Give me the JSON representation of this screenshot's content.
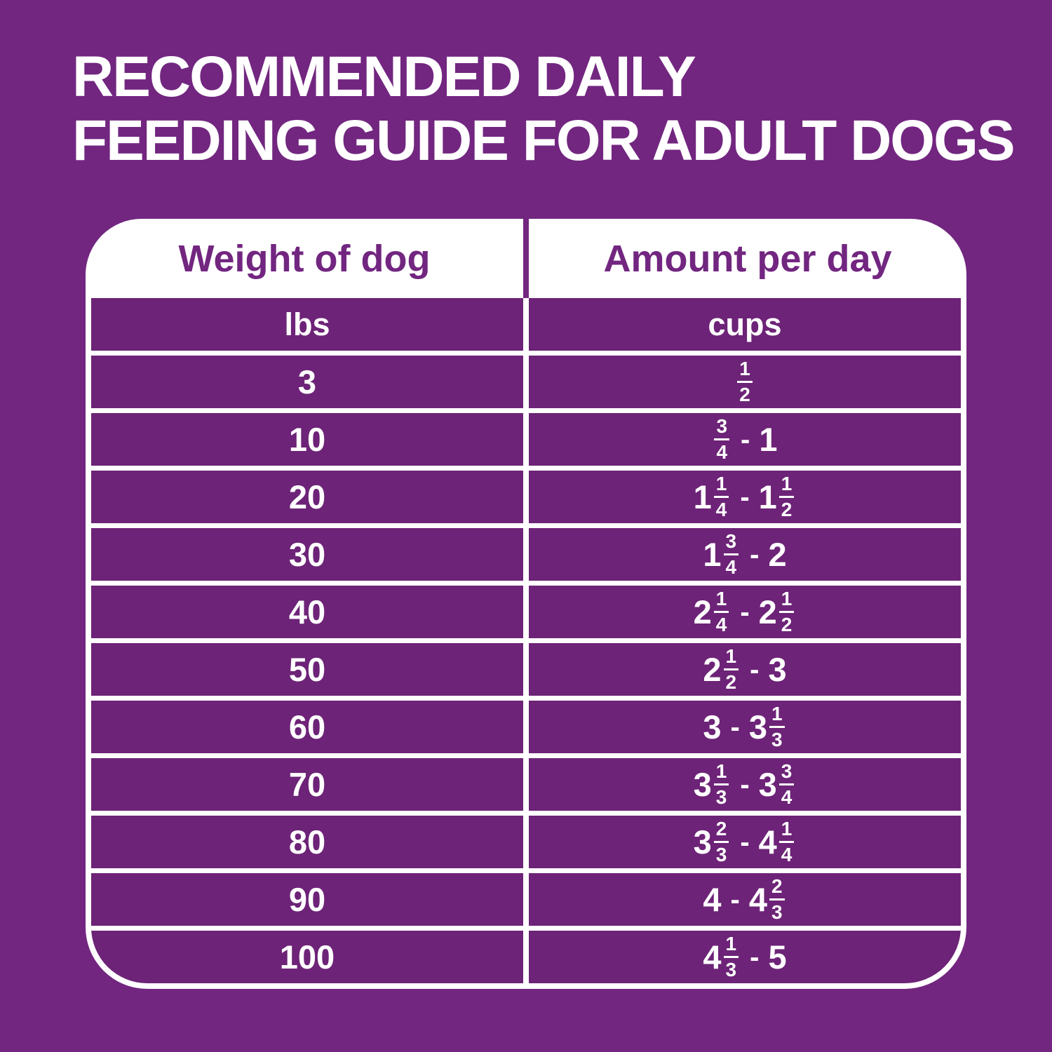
{
  "colors": {
    "background": "#722680",
    "row_fill": "#6D2377",
    "table_line": "#FFFFFF",
    "header_fill": "#FFFFFF",
    "header_text": "#722680",
    "body_text": "#FFFFFF"
  },
  "title": {
    "line1": "RECOMMENDED DAILY",
    "line2": "FEEDING GUIDE FOR ADULT DOGS"
  },
  "table": {
    "columns": [
      {
        "header": "Weight of dog",
        "unit": "lbs"
      },
      {
        "header": "Amount per day",
        "unit": "cups"
      }
    ],
    "range_separator": "-",
    "rows": [
      {
        "weight": "3",
        "amounts": [
          {
            "num": "1",
            "den": "2"
          }
        ]
      },
      {
        "weight": "10",
        "amounts": [
          {
            "num": "3",
            "den": "4"
          },
          {
            "whole": "1"
          }
        ]
      },
      {
        "weight": "20",
        "amounts": [
          {
            "whole": "1",
            "num": "1",
            "den": "4"
          },
          {
            "whole": "1",
            "num": "1",
            "den": "2"
          }
        ]
      },
      {
        "weight": "30",
        "amounts": [
          {
            "whole": "1",
            "num": "3",
            "den": "4"
          },
          {
            "whole": "2"
          }
        ]
      },
      {
        "weight": "40",
        "amounts": [
          {
            "whole": "2",
            "num": "1",
            "den": "4"
          },
          {
            "whole": "2",
            "num": "1",
            "den": "2"
          }
        ]
      },
      {
        "weight": "50",
        "amounts": [
          {
            "whole": "2",
            "num": "1",
            "den": "2"
          },
          {
            "whole": "3"
          }
        ]
      },
      {
        "weight": "60",
        "amounts": [
          {
            "whole": "3"
          },
          {
            "whole": "3",
            "num": "1",
            "den": "3"
          }
        ]
      },
      {
        "weight": "70",
        "amounts": [
          {
            "whole": "3",
            "num": "1",
            "den": "3"
          },
          {
            "whole": "3",
            "num": "3",
            "den": "4"
          }
        ]
      },
      {
        "weight": "80",
        "amounts": [
          {
            "whole": "3",
            "num": "2",
            "den": "3"
          },
          {
            "whole": "4",
            "num": "1",
            "den": "4"
          }
        ]
      },
      {
        "weight": "90",
        "amounts": [
          {
            "whole": "4"
          },
          {
            "whole": "4",
            "num": "2",
            "den": "3"
          }
        ]
      },
      {
        "weight": "100",
        "amounts": [
          {
            "whole": "4",
            "num": "1",
            "den": "3"
          },
          {
            "whole": "5"
          }
        ]
      }
    ]
  },
  "chart_data": {
    "type": "table",
    "title": "RECOMMENDED DAILY FEEDING GUIDE FOR ADULT DOGS",
    "columns": [
      "Weight of dog (lbs)",
      "Amount per day (cups)"
    ],
    "rows": [
      [
        "3",
        "1/2"
      ],
      [
        "10",
        "3/4 - 1"
      ],
      [
        "20",
        "1 1/4 - 1 1/2"
      ],
      [
        "30",
        "1 3/4 - 2"
      ],
      [
        "40",
        "2 1/4 - 2 1/2"
      ],
      [
        "50",
        "2 1/2 - 3"
      ],
      [
        "60",
        "3 - 3 1/3"
      ],
      [
        "70",
        "3 1/3 - 3 3/4"
      ],
      [
        "80",
        "3 2/3 - 4 1/4"
      ],
      [
        "90",
        "4 - 4 2/3"
      ],
      [
        "100",
        "4 1/3 - 5"
      ]
    ]
  }
}
